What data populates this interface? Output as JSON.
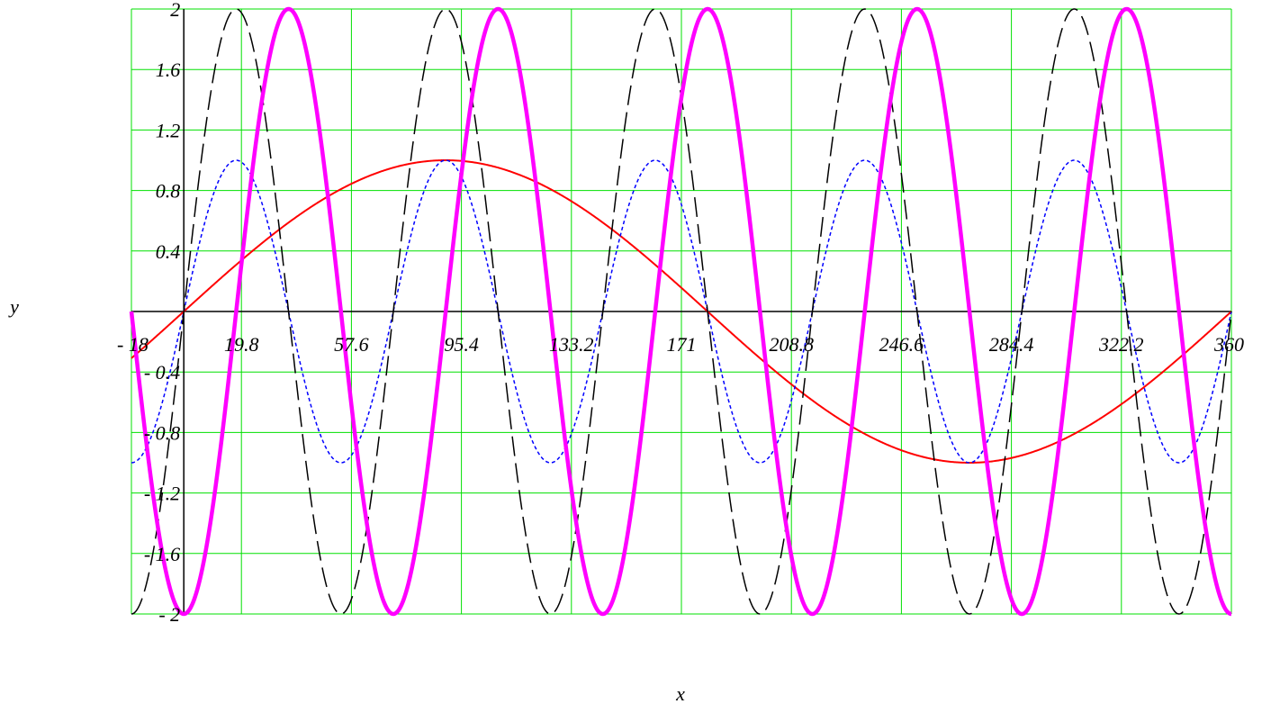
{
  "chart_data": {
    "type": "line",
    "xlabel": "x",
    "ylabel": "y",
    "xlim": [
      -18,
      360
    ],
    "ylim": [
      -2,
      2
    ],
    "grid": true,
    "grid_color": "#00e000",
    "axis_color": "#000000",
    "x_ticks": [
      -18,
      19.8,
      57.6,
      95.4,
      133.2,
      171,
      208.8,
      246.6,
      284.4,
      322.2,
      360
    ],
    "x_tick_labels": [
      "- 18",
      "19.8",
      "57.6",
      "95.4",
      "133.2",
      "171",
      "208.8",
      "246.6",
      "284.4",
      "322.2",
      "360"
    ],
    "y_ticks": [
      -2,
      -1.6,
      -1.2,
      -0.8,
      -0.4,
      0.4,
      0.8,
      1.2,
      1.6,
      2
    ],
    "y_tick_labels": [
      "- 2",
      "- 1.6",
      "- 1.2",
      "- 0.8",
      "- 0.4",
      "0.4",
      "0.8",
      "1.2",
      "1.6",
      "2"
    ],
    "series": [
      {
        "color": "#ff0000",
        "width": 2,
        "dash": "",
        "formula": "sin(x deg)",
        "x": [
          -18,
          0,
          30,
          60,
          90,
          120,
          150,
          180,
          210,
          240,
          270,
          300,
          330,
          360
        ],
        "y": [
          -0.309,
          0,
          0.5,
          0.866,
          1,
          0.866,
          0.5,
          0,
          -0.5,
          -0.866,
          -1,
          -0.866,
          -0.5,
          0
        ]
      },
      {
        "color": "#0000ff",
        "width": 1.5,
        "dash": "4,3",
        "formula": "sin(5x deg)",
        "x": [
          -18,
          0,
          18,
          36,
          54,
          72,
          90,
          108,
          126,
          144,
          162,
          180,
          198,
          216,
          234,
          252,
          270,
          288,
          306,
          324,
          342,
          360
        ],
        "y": [
          -1,
          0,
          1,
          0,
          -1,
          0,
          1,
          0,
          -1,
          0,
          1,
          0,
          -1,
          0,
          1,
          0,
          -1,
          0,
          1,
          0,
          -1,
          0
        ]
      },
      {
        "color": "#000000",
        "width": 1.5,
        "dash": "22,8",
        "formula": "2 sin(5x deg)",
        "x": [
          -18,
          0,
          18,
          36,
          54,
          72,
          90,
          108,
          126,
          144,
          162,
          180,
          198,
          216,
          234,
          252,
          270,
          288,
          306,
          324,
          342,
          360
        ],
        "y": [
          -2,
          0,
          2,
          0,
          -2,
          0,
          2,
          0,
          -2,
          0,
          2,
          0,
          -2,
          0,
          2,
          0,
          -2,
          0,
          2,
          0,
          -2,
          0
        ]
      },
      {
        "color": "#ff00ff",
        "width": 4.5,
        "dash": "",
        "formula": "-2 cos(5x deg)",
        "x": [
          -18,
          0,
          18,
          36,
          54,
          72,
          90,
          108,
          126,
          144,
          162,
          180,
          198,
          216,
          234,
          252,
          270,
          288,
          306,
          324,
          342,
          360
        ],
        "y": [
          0,
          -2,
          0,
          2,
          0,
          -2,
          0,
          2,
          0,
          -2,
          0,
          2,
          0,
          -2,
          0,
          2,
          0,
          -2,
          0,
          2,
          0,
          -2
        ]
      }
    ]
  }
}
